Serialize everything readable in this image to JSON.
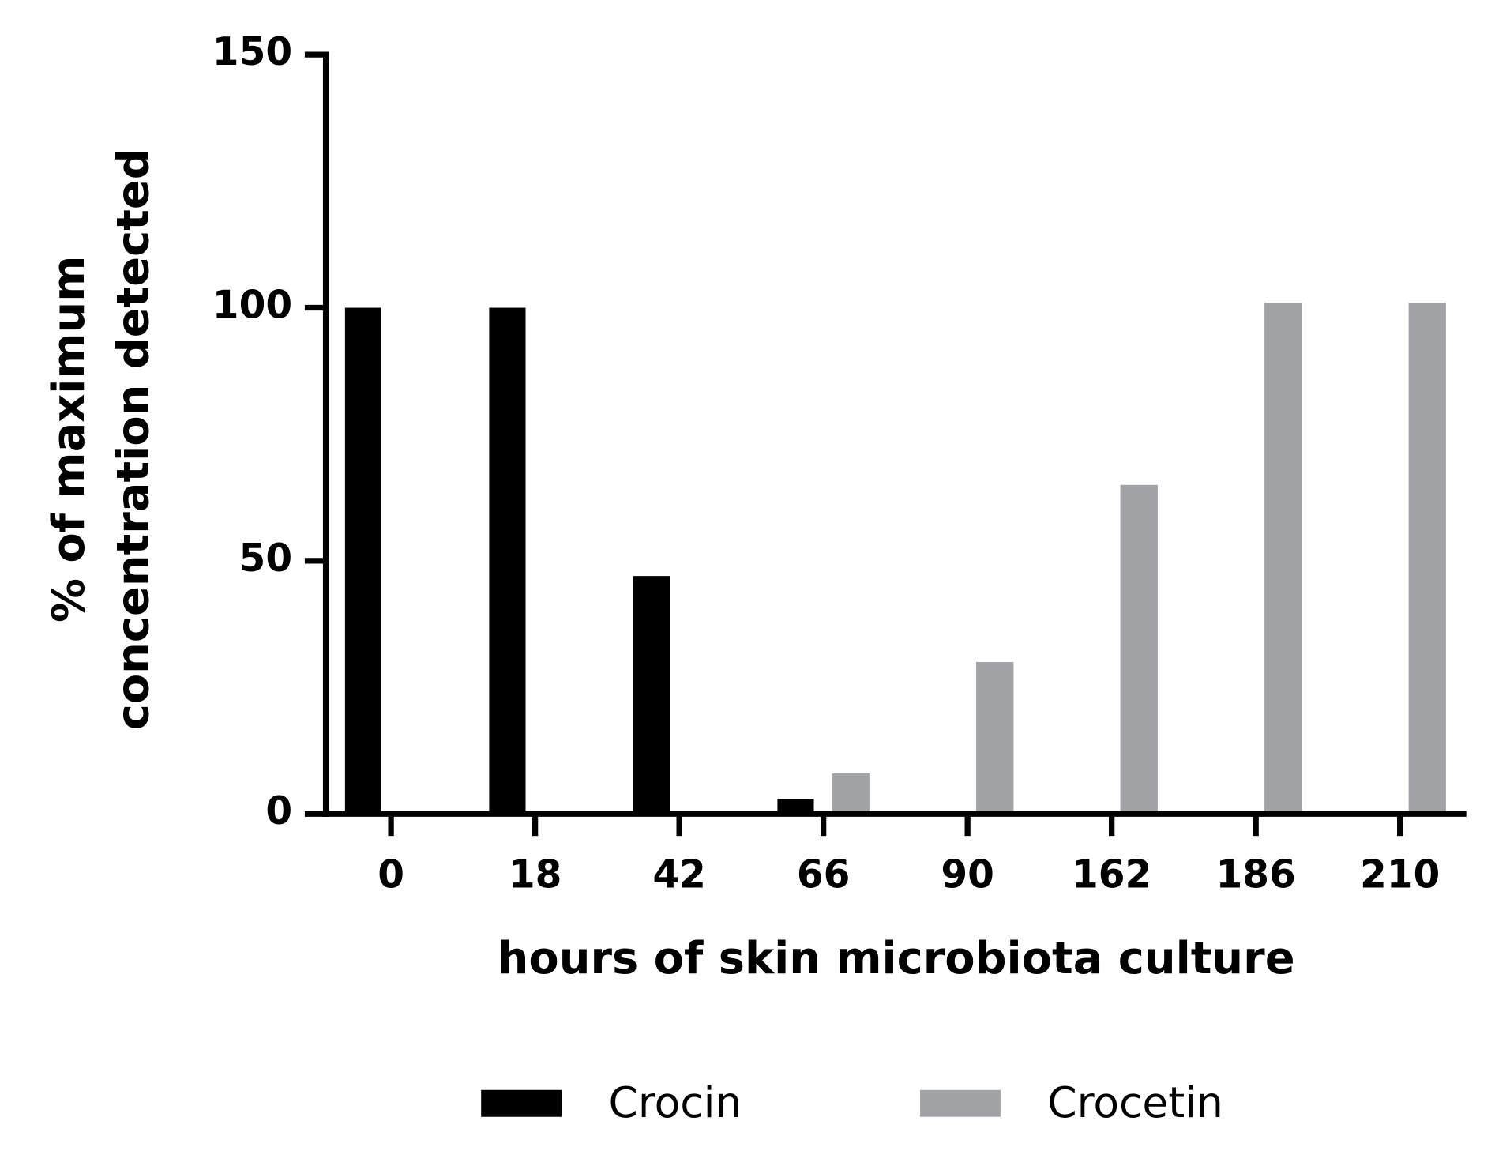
{
  "chart_data": {
    "type": "bar",
    "xlabel": "hours of skin microbiota culture",
    "ylabel": [
      "% of maximum",
      "concentration detected"
    ],
    "categories": [
      "0",
      "18",
      "42",
      "66",
      "90",
      "162",
      "186",
      "210"
    ],
    "series": [
      {
        "name": "Crocin",
        "color": "#000000",
        "values": [
          100,
          100,
          47,
          3,
          0,
          0,
          0,
          0
        ]
      },
      {
        "name": "Crocetin",
        "color": "#a2a3a6",
        "values": [
          0,
          0,
          0,
          8,
          30,
          65,
          101,
          101
        ]
      }
    ],
    "ylim": [
      0,
      150
    ],
    "yticks": [
      0,
      50,
      100,
      150
    ],
    "legend": "bottom"
  }
}
